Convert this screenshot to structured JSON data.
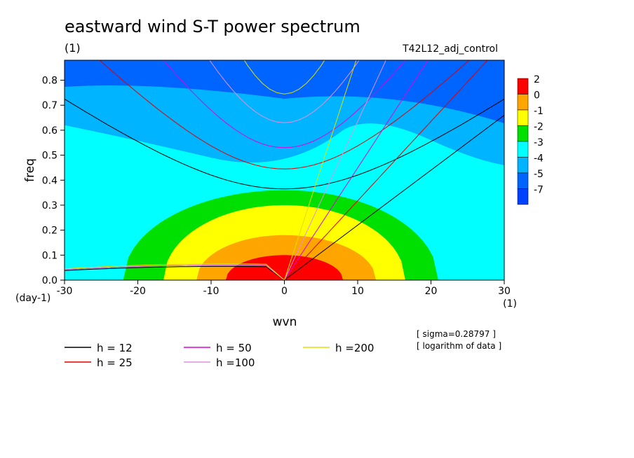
{
  "title": "eastward wind S-T power spectrum",
  "subtitle": "(1)",
  "run_label": "T42L12_adj_control",
  "notes": [
    "[ sigma=0.28797 ]",
    "[ logarithm of data ]"
  ],
  "chart_data": {
    "type": "contour",
    "xlabel": "wvn",
    "ylabel": "freq",
    "x_unit": "(1)",
    "y_unit": "(day-1)",
    "xlim": [
      -30,
      30
    ],
    "ylim": [
      0,
      0.88
    ],
    "x_ticks": [
      -30,
      -20,
      -10,
      0,
      10,
      20,
      30
    ],
    "y_ticks": [
      0.0,
      0.1,
      0.2,
      0.3,
      0.4,
      0.5,
      0.6,
      0.7,
      0.8
    ],
    "x_tick_labels": [
      "-30",
      "-20",
      "-10",
      "0",
      "10",
      "20",
      "30"
    ],
    "y_tick_labels": [
      "0.0",
      "0.1",
      "0.2",
      "0.3",
      "0.4",
      "0.5",
      "0.6",
      "0.7",
      "0.8"
    ],
    "color_levels": [
      {
        "label": "2",
        "color": "#ff0000"
      },
      {
        "label": "0",
        "color": "#ffa500"
      },
      {
        "label": "-1",
        "color": "#ffff00"
      },
      {
        "label": "-2",
        "color": "#00e000"
      },
      {
        "label": "-3",
        "color": "#00ffff"
      },
      {
        "label": "-4",
        "color": "#00b4ff"
      },
      {
        "label": "-5",
        "color": "#0064ff"
      },
      {
        "label": "-7",
        "color": "#0040ff"
      }
    ],
    "filled_regions": [
      {
        "level_index": 4,
        "x0": -30,
        "x1": 30,
        "peak": 0.64,
        "base": 0.36,
        "skew": 0.14,
        "rx_left": 60,
        "rx_right": 60
      },
      {
        "level_index": 3,
        "x0": -22,
        "x1": 21,
        "peak": 0.4,
        "base": 0.36,
        "skew": 0.0,
        "rx_left": 22,
        "rx_right": 21
      },
      {
        "level_index": 2,
        "x0": -16.5,
        "x1": 16.5,
        "peak": 0.3,
        "base": 0.3,
        "skew": 0.0,
        "rx_left": 16.5,
        "rx_right": 16.5
      },
      {
        "level_index": 1,
        "x0": -12,
        "x1": 12.5,
        "peak": 0.18,
        "base": 0.18,
        "skew": 0.0,
        "rx_left": 12,
        "rx_right": 12.5
      },
      {
        "level_index": 0,
        "x0": -8,
        "x1": 8,
        "peak": 0.1,
        "base": 0.1,
        "skew": 0.0,
        "rx_left": 8,
        "rx_right": 8
      }
    ],
    "background_contour": {
      "level_index": 5,
      "corner_level_index": 6
    },
    "series": [
      {
        "name": "h = 12",
        "color": "#000000",
        "equivalent_depth": 12
      },
      {
        "name": "h = 25",
        "color": "#e00000",
        "equivalent_depth": 25
      },
      {
        "name": "h = 50",
        "color": "#e000e0",
        "equivalent_depth": 50
      },
      {
        "name": "h =100",
        "color": "#e090e0",
        "equivalent_depth": 100
      },
      {
        "name": "h =200",
        "color": "#e0e000",
        "equivalent_depth": 200
      }
    ],
    "wave_families": [
      {
        "family": "kelvin",
        "min_freq": [
          0,
          0,
          0,
          0,
          0
        ]
      },
      {
        "family": "inertia-gravity",
        "min_freq": [
          0.365,
          0.445,
          0.53,
          0.63,
          0.745
        ]
      },
      {
        "family": "rossby",
        "max_freq": [
          0.055,
          0.06,
          0.06,
          0.06,
          0.065
        ]
      }
    ],
    "legend_position": "bottom"
  }
}
